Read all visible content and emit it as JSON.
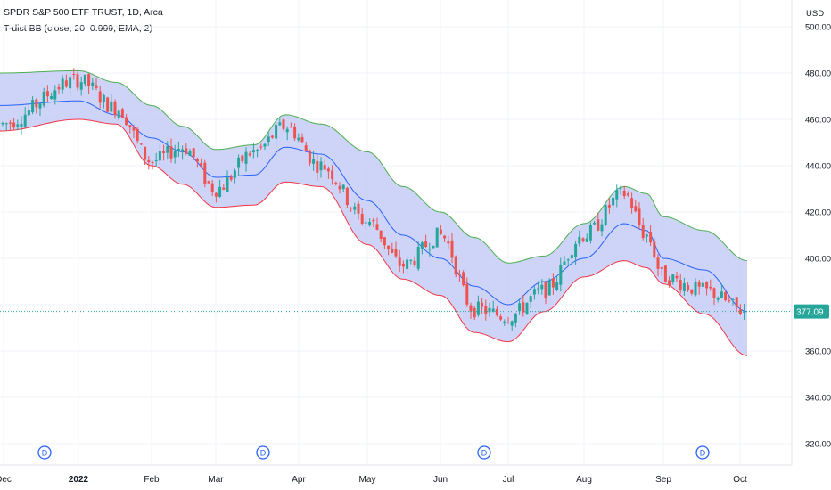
{
  "header": {
    "title": "SPDR S&P 500 ETF TRUST, 1D, Arca",
    "indicator": "T-dist BB (close, 20, 0.999, EMA, 2)"
  },
  "price_scale": {
    "currency": "USD",
    "ticks": [
      "500.00",
      "480.00",
      "460.00",
      "440.00",
      "420.00",
      "400.00",
      "380.00",
      "360.00",
      "340.00",
      "320.00"
    ],
    "last_price": "377.09"
  },
  "time_axis": {
    "labels": [
      {
        "text": "Dec",
        "bold": false
      },
      {
        "text": "2022",
        "bold": true
      },
      {
        "text": "Feb",
        "bold": false
      },
      {
        "text": "Mar",
        "bold": false
      },
      {
        "text": "Apr",
        "bold": false
      },
      {
        "text": "May",
        "bold": false
      },
      {
        "text": "Jun",
        "bold": false
      },
      {
        "text": "Jul",
        "bold": false
      },
      {
        "text": "Aug",
        "bold": false
      },
      {
        "text": "Sep",
        "bold": false
      },
      {
        "text": "Oct",
        "bold": false
      }
    ]
  },
  "dividend_marker": "D",
  "colors": {
    "up": "#26a69a",
    "down": "#ef5350",
    "band_fill": "#c5cbf7",
    "upper_band": "#4caf50",
    "lower_band": "#f23645",
    "basis": "#2962ff",
    "price_label": "#26a69a",
    "dividend": "#2962ff"
  },
  "chart_data": {
    "type": "candlestick",
    "y_unit": "USD",
    "ylim": [
      310,
      510
    ],
    "x_range": [
      "Dec 2021",
      "Oct 2022"
    ],
    "last_close": 377.09,
    "series": [
      {
        "name": "basis",
        "points": [
          [
            "Dec 2021",
            466
          ],
          [
            "2022",
            468
          ],
          [
            "Jan mid",
            462
          ],
          [
            "Feb",
            452
          ],
          [
            "Feb mid",
            446
          ],
          [
            "Mar",
            435
          ],
          [
            "Mar mid",
            436
          ],
          [
            "Apr",
            448
          ],
          [
            "Apr mid",
            445
          ],
          [
            "May",
            425
          ],
          [
            "May mid",
            410
          ],
          [
            "Jun",
            400
          ],
          [
            "Jun mid",
            388
          ],
          [
            "Jul",
            380
          ],
          [
            "Jul mid",
            390
          ],
          [
            "Aug",
            400
          ],
          [
            "Aug mid",
            415
          ],
          [
            "Aug end",
            412
          ],
          [
            "Sep",
            400
          ],
          [
            "Sep mid",
            395
          ],
          [
            "Oct",
            377
          ]
        ]
      },
      {
        "name": "upper",
        "points": [
          [
            "Dec 2021",
            480
          ],
          [
            "2022",
            481
          ],
          [
            "Jan mid",
            476
          ],
          [
            "Feb",
            466
          ],
          [
            "Feb mid",
            457
          ],
          [
            "Mar",
            447
          ],
          [
            "Mar mid",
            449
          ],
          [
            "Apr",
            462
          ],
          [
            "Apr mid",
            458
          ],
          [
            "May",
            446
          ],
          [
            "May mid",
            431
          ],
          [
            "Jun",
            420
          ],
          [
            "Jun mid",
            409
          ],
          [
            "Jul",
            398
          ],
          [
            "Jul mid",
            401
          ],
          [
            "Aug",
            415
          ],
          [
            "Aug mid",
            431
          ],
          [
            "Aug end",
            428
          ],
          [
            "Sep",
            418
          ],
          [
            "Sep mid",
            412
          ],
          [
            "Oct",
            399
          ]
        ]
      },
      {
        "name": "lower",
        "points": [
          [
            "Dec 2021",
            455
          ],
          [
            "2022",
            460
          ],
          [
            "Jan mid",
            458
          ],
          [
            "Feb",
            440
          ],
          [
            "Feb mid",
            432
          ],
          [
            "Mar",
            422
          ],
          [
            "Mar mid",
            423
          ],
          [
            "Apr",
            433
          ],
          [
            "Apr mid",
            431
          ],
          [
            "May",
            406
          ],
          [
            "May mid",
            391
          ],
          [
            "Jun",
            384
          ],
          [
            "Jun mid",
            368
          ],
          [
            "Jul",
            364
          ],
          [
            "Jul mid",
            377
          ],
          [
            "Aug",
            392
          ],
          [
            "Aug mid",
            399
          ],
          [
            "Aug end",
            396
          ],
          [
            "Sep",
            389
          ],
          [
            "Sep mid",
            376
          ],
          [
            "Oct",
            358
          ]
        ]
      },
      {
        "name": "close",
        "points": [
          [
            "Dec 2021",
            458
          ],
          [
            "2022",
            477
          ],
          [
            "Jan mid",
            465
          ],
          [
            "Feb",
            442
          ],
          [
            "Feb mid",
            448
          ],
          [
            "Mar",
            430
          ],
          [
            "Mar mid",
            446
          ],
          [
            "Apr",
            457
          ],
          [
            "Apr mid",
            440
          ],
          [
            "May",
            416
          ],
          [
            "May mid",
            397
          ],
          [
            "Jun",
            410
          ],
          [
            "Jun mid",
            378
          ],
          [
            "Jul",
            375
          ],
          [
            "Jul mid",
            386
          ],
          [
            "Aug",
            410
          ],
          [
            "Aug mid",
            428
          ],
          [
            "Aug end",
            410
          ],
          [
            "Sep",
            392
          ],
          [
            "Sep mid",
            386
          ],
          [
            "Oct",
            377
          ]
        ]
      }
    ]
  }
}
